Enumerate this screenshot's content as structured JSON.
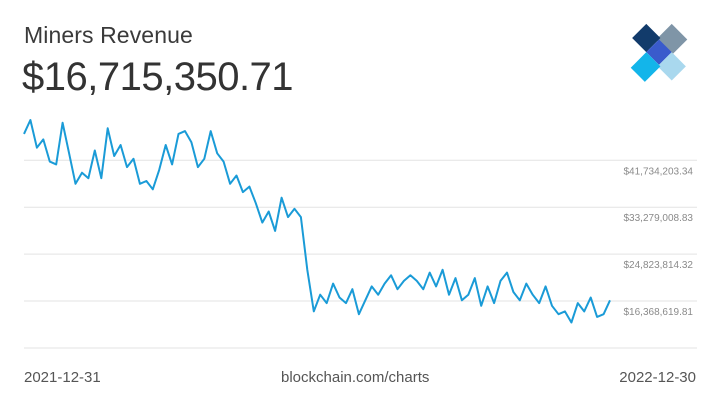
{
  "header": {
    "title": "Miners Revenue",
    "current_value": "$16,715,350.71"
  },
  "footer": {
    "start_date": "2021-12-31",
    "source": "blockchain.com/charts",
    "end_date": "2022-12-30"
  },
  "colors": {
    "line": "#1a9bd7",
    "grid": "#e3e3e3",
    "tick_text": "#8a8a8a",
    "logo_dark": "#123b6b",
    "logo_mid": "#7f95a7",
    "logo_blue": "#3a5bcc",
    "logo_cyan": "#13b5ea",
    "logo_light": "#a9d8ee"
  },
  "chart_data": {
    "type": "line",
    "title": "Miners Revenue",
    "xlabel": "",
    "ylabel": "",
    "x_range": [
      "2021-12-31",
      "2022-12-30"
    ],
    "y_ticks": [
      {
        "value": 41734203.34,
        "label": "$41,734,203.34"
      },
      {
        "value": 33279008.83,
        "label": "$33,279,008.83"
      },
      {
        "value": 24823814.32,
        "label": "$24,823,814.32"
      },
      {
        "value": 16368619.81,
        "label": "$16,368,619.81"
      }
    ],
    "ylim": [
      7900000,
      50800000
    ],
    "grid": true,
    "series": [
      {
        "x": [
          "2021-12-31",
          "2022-01-04",
          "2022-01-08",
          "2022-01-12",
          "2022-01-16",
          "2022-01-20",
          "2022-01-24",
          "2022-01-28",
          "2022-02-01",
          "2022-02-05",
          "2022-02-09",
          "2022-02-13",
          "2022-02-17",
          "2022-02-21",
          "2022-02-25",
          "2022-03-01",
          "2022-03-05",
          "2022-03-09",
          "2022-03-13",
          "2022-03-17",
          "2022-03-21",
          "2022-03-25",
          "2022-03-29",
          "2022-04-02",
          "2022-04-06",
          "2022-04-10",
          "2022-04-14",
          "2022-04-18",
          "2022-04-22",
          "2022-04-26",
          "2022-04-30",
          "2022-05-04",
          "2022-05-08",
          "2022-05-12",
          "2022-05-16",
          "2022-05-20",
          "2022-05-24",
          "2022-05-28",
          "2022-06-01",
          "2022-06-05",
          "2022-06-09",
          "2022-06-13",
          "2022-06-17",
          "2022-06-21",
          "2022-06-25",
          "2022-06-29",
          "2022-07-03",
          "2022-07-07",
          "2022-07-11",
          "2022-07-15",
          "2022-07-19",
          "2022-07-23",
          "2022-07-27",
          "2022-07-31",
          "2022-08-04",
          "2022-08-08",
          "2022-08-12",
          "2022-08-16",
          "2022-08-20",
          "2022-08-24",
          "2022-08-28",
          "2022-09-01",
          "2022-09-05",
          "2022-09-09",
          "2022-09-13",
          "2022-09-17",
          "2022-09-21",
          "2022-09-25",
          "2022-09-29",
          "2022-10-03",
          "2022-10-07",
          "2022-10-11",
          "2022-10-15",
          "2022-10-19",
          "2022-10-23",
          "2022-10-27",
          "2022-10-31",
          "2022-11-04",
          "2022-11-08",
          "2022-11-12",
          "2022-11-16",
          "2022-11-20",
          "2022-11-24",
          "2022-11-28",
          "2022-12-02",
          "2022-12-06",
          "2022-12-10",
          "2022-12-14",
          "2022-12-18",
          "2022-12-22",
          "2022-12-26",
          "2022-12-30"
        ],
        "values": [
          46.5,
          49.0,
          44.0,
          45.5,
          41.5,
          41.0,
          48.5,
          43.0,
          37.5,
          39.5,
          38.5,
          43.5,
          38.5,
          47.5,
          42.5,
          44.5,
          40.5,
          42.0,
          37.5,
          38.0,
          36.5,
          40.0,
          44.5,
          41.0,
          46.5,
          47.0,
          45.0,
          40.5,
          42.0,
          47.0,
          43.0,
          41.5,
          37.5,
          39.0,
          36.0,
          37.0,
          34.0,
          30.5,
          32.5,
          29.0,
          35.0,
          31.5,
          33.0,
          31.5,
          22.0,
          14.5,
          17.5,
          16.0,
          19.5,
          17.0,
          16.0,
          18.5,
          14.0,
          16.5,
          19.0,
          17.5,
          19.5,
          21.0,
          18.5,
          20.0,
          21.0,
          20.0,
          18.5,
          21.5,
          19.0,
          22.0,
          17.5,
          20.5,
          16.5,
          17.5,
          20.5,
          15.5,
          19.0,
          16.0,
          20.0,
          21.5,
          18.0,
          16.5,
          19.5,
          17.5,
          16.0,
          19.0,
          15.5,
          14.0,
          14.5,
          12.5,
          16.0,
          14.5,
          17.0,
          13.5,
          14.0,
          16.5
        ],
        "unit": "USD (millions)"
      }
    ]
  }
}
